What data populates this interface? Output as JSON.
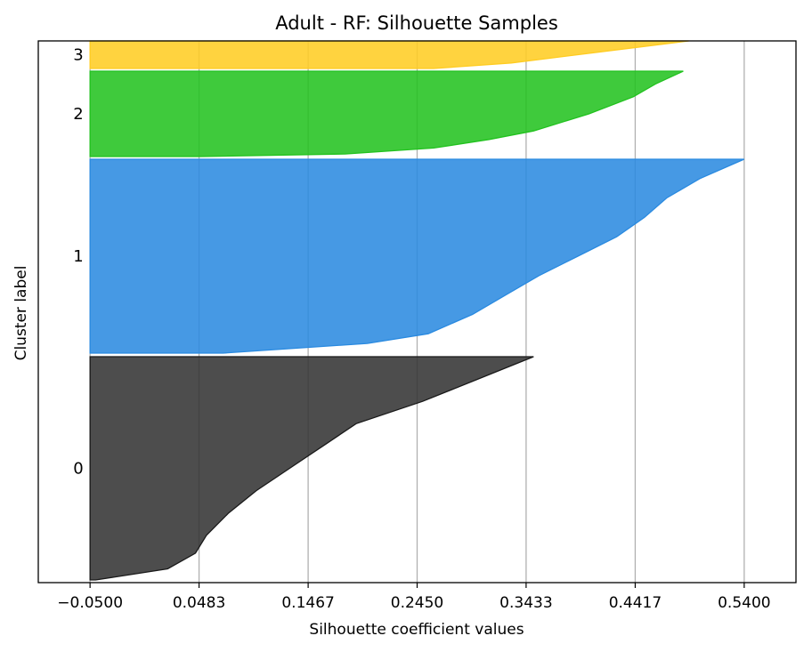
{
  "chart_data": {
    "type": "silhouette",
    "title": "Adult - RF: Silhouette Samples",
    "xlabel": "Silhouette coefficient values",
    "ylabel": "Cluster label",
    "xlim": [
      -0.0967,
      0.5867
    ],
    "x_ticks": [
      -0.05,
      0.0483,
      0.1467,
      0.245,
      0.3433,
      0.4417,
      0.54
    ],
    "x_tick_labels": [
      "−0.0500",
      "0.0483",
      "0.1467",
      "0.2450",
      "0.3433",
      "0.4417",
      "0.5400"
    ],
    "grid": "vertical",
    "clusters": [
      {
        "label": "0",
        "color": "#333333",
        "outline": "#1a1a1a",
        "max_value": 0.35,
        "profile": [
          [
            0,
            0.35
          ],
          [
            0.1,
            0.3
          ],
          [
            0.2,
            0.25
          ],
          [
            0.3,
            0.19
          ],
          [
            0.4,
            0.16
          ],
          [
            0.5,
            0.13
          ],
          [
            0.6,
            0.1
          ],
          [
            0.7,
            0.075
          ],
          [
            0.8,
            0.055
          ],
          [
            0.88,
            0.045
          ],
          [
            0.95,
            0.02
          ],
          [
            1,
            -0.045
          ]
        ]
      },
      {
        "label": "1",
        "color": "#2a8ae0",
        "outline": "#2a8ae0",
        "max_value": 0.54,
        "profile": [
          [
            0,
            0.54
          ],
          [
            0.1,
            0.5
          ],
          [
            0.2,
            0.47
          ],
          [
            0.3,
            0.45
          ],
          [
            0.4,
            0.425
          ],
          [
            0.5,
            0.39
          ],
          [
            0.6,
            0.355
          ],
          [
            0.7,
            0.325
          ],
          [
            0.8,
            0.295
          ],
          [
            0.9,
            0.255
          ],
          [
            0.95,
            0.2
          ],
          [
            1,
            0.07
          ]
        ]
      },
      {
        "label": "2",
        "color": "#22c21f",
        "outline": "#22c21f",
        "max_value": 0.485,
        "profile": [
          [
            0,
            0.485
          ],
          [
            0.15,
            0.46
          ],
          [
            0.3,
            0.44
          ],
          [
            0.5,
            0.4
          ],
          [
            0.7,
            0.35
          ],
          [
            0.8,
            0.31
          ],
          [
            0.9,
            0.26
          ],
          [
            0.97,
            0.18
          ],
          [
            1,
            0.05
          ]
        ]
      },
      {
        "label": "3",
        "color": "#ffcc22",
        "outline": "#ffcc22",
        "max_value": 0.49,
        "profile": [
          [
            0,
            0.49
          ],
          [
            0.2,
            0.45
          ],
          [
            0.5,
            0.39
          ],
          [
            0.8,
            0.33
          ],
          [
            1,
            0.26
          ]
        ]
      }
    ]
  }
}
